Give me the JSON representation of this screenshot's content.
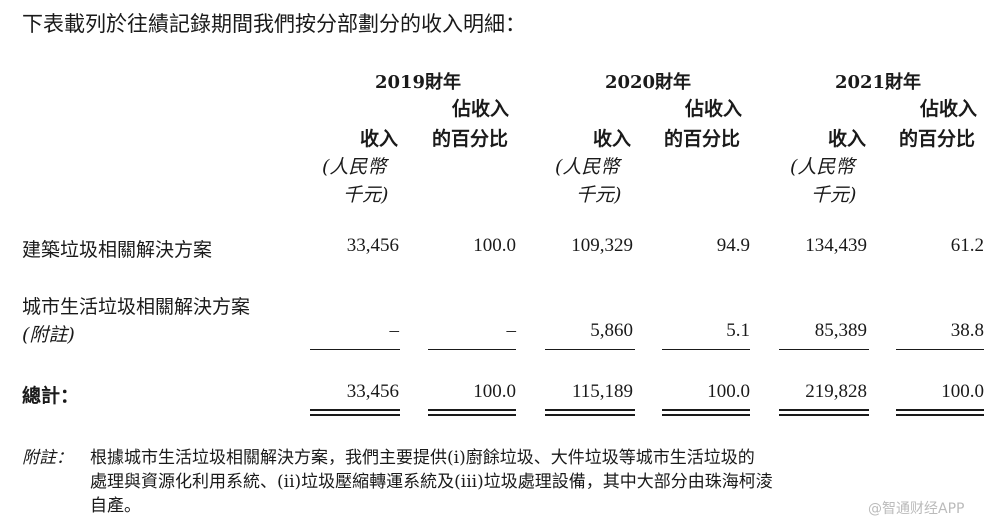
{
  "intro": "下表載列於往績記錄期間我們按分部劃分的收入明細：",
  "years": [
    "2019財年",
    "2020財年",
    "2021財年"
  ],
  "col_headers": {
    "revenue": "收入",
    "unit1": "(人民幣",
    "unit2": "千元)",
    "pct1": "佔收入",
    "pct2": "的百分比"
  },
  "rows": [
    {
      "label": "建築垃圾相關解決方案",
      "values": [
        "33,456",
        "100.0",
        "109,329",
        "94.9",
        "134,439",
        "61.2"
      ]
    },
    {
      "label": "城市生活垃圾相關解決方案",
      "label2": "(附註)",
      "values": [
        "–",
        "–",
        "5,860",
        "5.1",
        "85,389",
        "38.8"
      ]
    }
  ],
  "total": {
    "label": "總計：",
    "values": [
      "33,456",
      "100.0",
      "115,189",
      "100.0",
      "219,828",
      "100.0"
    ]
  },
  "note": {
    "tag": "附註：",
    "lines": [
      "根據城市生活垃圾相關解決方案，我們主要提供(i)廚餘垃圾、大件垃圾等城市生活垃圾的",
      "處理與資源化利用系統、(ii)垃圾壓縮轉運系統及(iii)垃圾處理設備，其中大部分由珠海柯淩",
      "自產。"
    ]
  },
  "watermark": "@智通财经APP"
}
